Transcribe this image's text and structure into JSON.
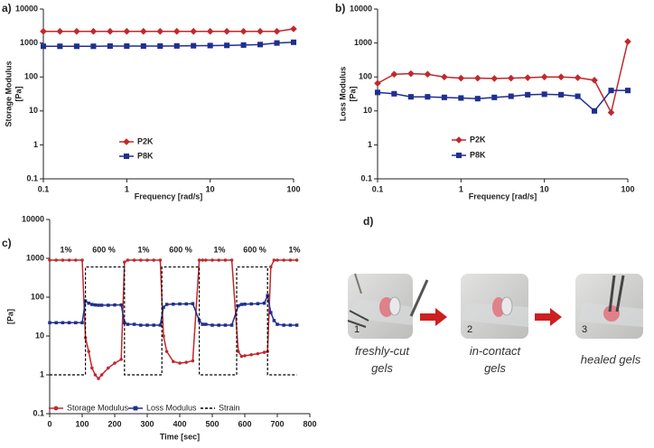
{
  "chart_data": [
    {
      "type": "line",
      "panel_label": "a)",
      "x_label": "Frequency [rad/s]",
      "y_label": [
        "Storage Modulus",
        "[Pa]"
      ],
      "xlog": true,
      "ylog": true,
      "xlim": [
        0.1,
        100
      ],
      "ylim": [
        0.1,
        10000
      ],
      "xticks": [
        0.1,
        1,
        10,
        100
      ],
      "yticks": [
        10000,
        1000,
        100,
        10,
        1,
        0.1
      ],
      "legend": "center",
      "x": [
        0.1,
        0.158,
        0.251,
        0.398,
        0.631,
        1,
        1.585,
        2.512,
        3.981,
        6.31,
        10,
        15.85,
        25.12,
        39.81,
        63.1,
        100
      ],
      "series": [
        {
          "name": "P2K",
          "color": "#c0282d",
          "marker": "diamond",
          "values": [
            2200,
            2200,
            2200,
            2200,
            2200,
            2200,
            2200,
            2200,
            2200,
            2200,
            2200,
            2200,
            2200,
            2200,
            2200,
            2600
          ]
        },
        {
          "name": "P8K",
          "color": "#1f2f8f",
          "marker": "square",
          "values": [
            800,
            800,
            800,
            800,
            810,
            810,
            810,
            810,
            820,
            830,
            840,
            850,
            870,
            900,
            1000,
            1050
          ]
        }
      ]
    },
    {
      "type": "line",
      "panel_label": "b)",
      "x_label": "Frequency [rad/s]",
      "y_label": [
        "Loss Modulus",
        "[Pa]"
      ],
      "xlog": true,
      "ylog": true,
      "xlim": [
        0.1,
        100
      ],
      "ylim": [
        0.1,
        10000
      ],
      "xticks": [
        0.1,
        1,
        10,
        100
      ],
      "yticks": [
        10000,
        1000,
        100,
        10,
        1,
        0.1
      ],
      "legend": "center",
      "x": [
        0.1,
        0.158,
        0.251,
        0.398,
        0.631,
        1,
        1.585,
        2.512,
        3.981,
        6.31,
        10,
        15.85,
        25.12,
        39.81,
        63.1,
        100
      ],
      "series": [
        {
          "name": "P2K",
          "color": "#c0282d",
          "marker": "diamond",
          "values": [
            65,
            120,
            125,
            120,
            100,
            92,
            92,
            90,
            92,
            95,
            100,
            100,
            95,
            80,
            9,
            1100
          ]
        },
        {
          "name": "P8K",
          "color": "#1f2f8f",
          "marker": "square",
          "values": [
            35,
            32,
            26,
            26,
            25,
            24,
            23,
            25,
            27,
            30,
            31,
            30,
            27,
            10,
            40,
            40
          ]
        }
      ]
    },
    {
      "type": "line",
      "panel_label": "c)",
      "x_label": "Time [sec]",
      "y_label": [
        "[Pa]"
      ],
      "xlog": false,
      "ylog": true,
      "xlim": [
        0,
        800
      ],
      "ylim": [
        0.1,
        10000
      ],
      "xticks": [
        0,
        100,
        200,
        300,
        400,
        500,
        600,
        700,
        800
      ],
      "yticks": [
        10000,
        1000,
        100,
        10,
        1,
        0.1
      ],
      "legend": "bottom",
      "annotations": [
        "1%",
        "600 %",
        "1%",
        "600 %",
        "1%",
        "600 %",
        "1%"
      ],
      "x": [
        0,
        20,
        40,
        60,
        80,
        100,
        110,
        120,
        130,
        140,
        150,
        160,
        180,
        200,
        220,
        230,
        240,
        260,
        280,
        300,
        320,
        340,
        350,
        360,
        380,
        400,
        420,
        440,
        460,
        470,
        480,
        500,
        520,
        540,
        560,
        580,
        590,
        600,
        620,
        640,
        660,
        670,
        680,
        690,
        700,
        720,
        740,
        760
      ],
      "series": [
        {
          "name": "Storage Modulus",
          "color": "#c0282d",
          "marker": "circle",
          "values": [
            900,
            900,
            900,
            900,
            900,
            900,
            9,
            4,
            1.5,
            1,
            0.8,
            1,
            1.5,
            2,
            2.5,
            800,
            900,
            900,
            900,
            900,
            900,
            900,
            10,
            4,
            2.2,
            2,
            2.1,
            2.3,
            900,
            900,
            900,
            900,
            900,
            900,
            900,
            4,
            3,
            3.1,
            3.3,
            3.5,
            3.8,
            4,
            600,
            900,
            900,
            900,
            900,
            900
          ]
        },
        {
          "name": "Loss Modulus",
          "color": "#1f2f8f",
          "marker": "square",
          "values": [
            22,
            22,
            22,
            22,
            22,
            22,
            80,
            70,
            65,
            63,
            62,
            62,
            62,
            63,
            63,
            22,
            20,
            20,
            19,
            19,
            19,
            19,
            55,
            65,
            66,
            67,
            67,
            68,
            25,
            20,
            20,
            19,
            19,
            19,
            19,
            60,
            65,
            66,
            67,
            68,
            70,
            110,
            40,
            25,
            20,
            19,
            19,
            19
          ]
        },
        {
          "name": "Strain",
          "color": "#000000",
          "dashed": true,
          "x": [
            0,
            110,
            110,
            230,
            230,
            345,
            345,
            460,
            460,
            575,
            575,
            670,
            670,
            760
          ],
          "values": [
            1,
            1,
            600,
            600,
            1,
            1,
            600,
            600,
            1,
            1,
            600,
            600,
            1,
            1
          ]
        }
      ]
    }
  ],
  "panel_d": {
    "label": "d)",
    "images": [
      {
        "number": "1",
        "caption": [
          "freshly-cut",
          "gels"
        ]
      },
      {
        "number": "2",
        "caption": [
          "in-contact",
          "gels"
        ]
      },
      {
        "number": "3",
        "caption": [
          "healed gels"
        ]
      }
    ]
  }
}
